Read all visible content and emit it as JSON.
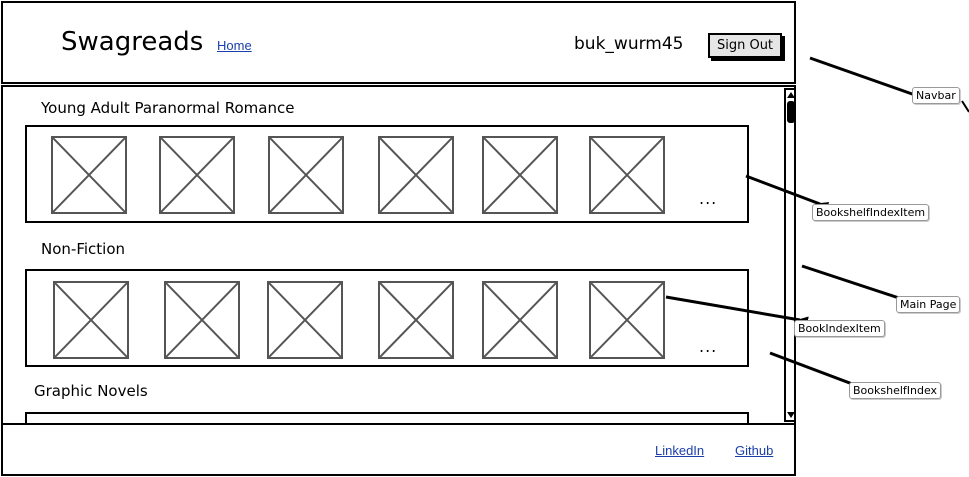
{
  "navbar": {
    "brand": "Swagreads",
    "home_link": "Home",
    "username": "buk_wurm45",
    "signout_label": "Sign Out"
  },
  "main": {
    "shelves": [
      {
        "title": "Young Adult Paranormal Romance",
        "book_count": 6,
        "more": "..."
      },
      {
        "title": "Non-Fiction",
        "book_count": 6,
        "more": "..."
      },
      {
        "title": "Graphic Novels",
        "book_count": 0,
        "more": ""
      }
    ]
  },
  "footer": {
    "linkedin": "LinkedIn",
    "github": "Github"
  },
  "annotations": {
    "navbar": "Navbar",
    "bookshelf_index_item": "BookshelfIndexItem",
    "main_page": "Main Page",
    "book_index_item": "BookIndexItem",
    "bookshelf_index": "BookshelfIndex"
  },
  "icons": {
    "book_placeholder": "image-placeholder-icon",
    "scroll_up": "scroll-up-arrow-icon",
    "scroll_down": "scroll-down-arrow-icon"
  }
}
